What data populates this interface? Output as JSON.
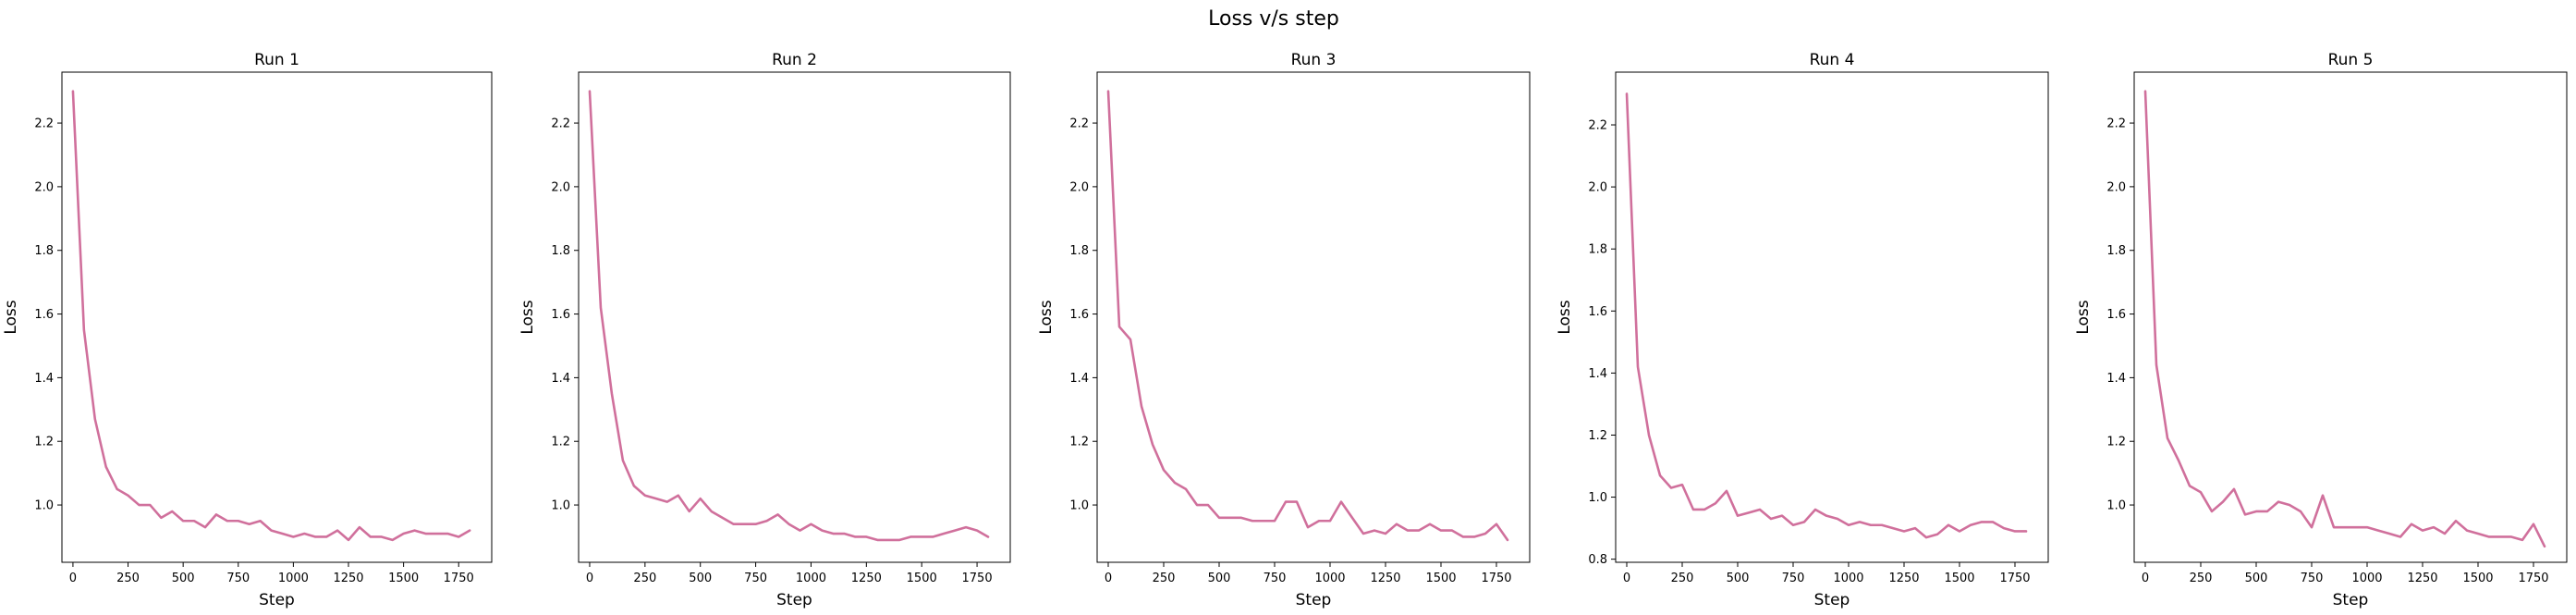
{
  "figure": {
    "suptitle": "Loss v/s step"
  },
  "chart_data": [
    {
      "type": "line",
      "title": "Run 1",
      "xlabel": "Step",
      "ylabel": "Loss",
      "xlim": [
        -50,
        1900
      ],
      "ylim": [
        0.82,
        2.36
      ],
      "xticks": [
        0,
        250,
        500,
        750,
        1000,
        1250,
        1500,
        1750
      ],
      "yticks": [
        1.0,
        1.2,
        1.4,
        1.6,
        1.8,
        2.0,
        2.2
      ],
      "line_color": "#d0709c",
      "series": [
        {
          "x": [
            0,
            50,
            100,
            150,
            200,
            250,
            300,
            350,
            400,
            450,
            500,
            550,
            600,
            650,
            700,
            750,
            800,
            850,
            900,
            950,
            1000,
            1050,
            1100,
            1150,
            1200,
            1250,
            1300,
            1350,
            1400,
            1450,
            1500,
            1550,
            1600,
            1650,
            1700,
            1750,
            1800
          ],
          "y": [
            2.3,
            1.55,
            1.27,
            1.12,
            1.05,
            1.03,
            1.0,
            1.0,
            0.96,
            0.98,
            0.95,
            0.95,
            0.93,
            0.97,
            0.95,
            0.95,
            0.94,
            0.95,
            0.92,
            0.91,
            0.9,
            0.91,
            0.9,
            0.9,
            0.92,
            0.89,
            0.93,
            0.9,
            0.9,
            0.89,
            0.91,
            0.92,
            0.91,
            0.91,
            0.91,
            0.9,
            0.92
          ]
        }
      ]
    },
    {
      "type": "line",
      "title": "Run 2",
      "xlabel": "Step",
      "ylabel": "Loss",
      "xlim": [
        -50,
        1900
      ],
      "ylim": [
        0.82,
        2.36
      ],
      "xticks": [
        0,
        250,
        500,
        750,
        1000,
        1250,
        1500,
        1750
      ],
      "yticks": [
        1.0,
        1.2,
        1.4,
        1.6,
        1.8,
        2.0,
        2.2
      ],
      "line_color": "#d0709c",
      "series": [
        {
          "x": [
            0,
            50,
            100,
            150,
            200,
            250,
            300,
            350,
            400,
            450,
            500,
            550,
            600,
            650,
            700,
            750,
            800,
            850,
            900,
            950,
            1000,
            1050,
            1100,
            1150,
            1200,
            1250,
            1300,
            1350,
            1400,
            1450,
            1500,
            1550,
            1600,
            1650,
            1700,
            1750,
            1800
          ],
          "y": [
            2.3,
            1.62,
            1.35,
            1.14,
            1.06,
            1.03,
            1.02,
            1.01,
            1.03,
            0.98,
            1.02,
            0.98,
            0.96,
            0.94,
            0.94,
            0.94,
            0.95,
            0.97,
            0.94,
            0.92,
            0.94,
            0.92,
            0.91,
            0.91,
            0.9,
            0.9,
            0.89,
            0.89,
            0.89,
            0.9,
            0.9,
            0.9,
            0.91,
            0.92,
            0.93,
            0.92,
            0.9
          ]
        }
      ]
    },
    {
      "type": "line",
      "title": "Run 3",
      "xlabel": "Step",
      "ylabel": "Loss",
      "xlim": [
        -50,
        1900
      ],
      "ylim": [
        0.82,
        2.36
      ],
      "xticks": [
        0,
        250,
        500,
        750,
        1000,
        1250,
        1500,
        1750
      ],
      "yticks": [
        1.0,
        1.2,
        1.4,
        1.6,
        1.8,
        2.0,
        2.2
      ],
      "line_color": "#d0709c",
      "series": [
        {
          "x": [
            0,
            50,
            100,
            150,
            200,
            250,
            300,
            350,
            400,
            450,
            500,
            550,
            600,
            650,
            700,
            750,
            800,
            850,
            900,
            950,
            1000,
            1050,
            1100,
            1150,
            1200,
            1250,
            1300,
            1350,
            1400,
            1450,
            1500,
            1550,
            1600,
            1650,
            1700,
            1750,
            1800
          ],
          "y": [
            2.3,
            1.56,
            1.52,
            1.31,
            1.19,
            1.11,
            1.07,
            1.05,
            1.0,
            1.0,
            0.96,
            0.96,
            0.96,
            0.95,
            0.95,
            0.95,
            1.01,
            1.01,
            0.93,
            0.95,
            0.95,
            1.01,
            0.96,
            0.91,
            0.92,
            0.91,
            0.94,
            0.92,
            0.92,
            0.94,
            0.92,
            0.92,
            0.9,
            0.9,
            0.91,
            0.94,
            0.89
          ]
        }
      ]
    },
    {
      "type": "line",
      "title": "Run 4",
      "xlabel": "Step",
      "ylabel": "Loss",
      "xlim": [
        -50,
        1900
      ],
      "ylim": [
        0.79,
        2.37
      ],
      "xticks": [
        0,
        250,
        500,
        750,
        1000,
        1250,
        1500,
        1750
      ],
      "yticks": [
        0.8,
        1.0,
        1.2,
        1.4,
        1.6,
        1.8,
        2.0,
        2.2
      ],
      "line_color": "#d0709c",
      "series": [
        {
          "x": [
            0,
            50,
            100,
            150,
            200,
            250,
            300,
            350,
            400,
            450,
            500,
            550,
            600,
            650,
            700,
            750,
            800,
            850,
            900,
            950,
            1000,
            1050,
            1100,
            1150,
            1200,
            1250,
            1300,
            1350,
            1400,
            1450,
            1500,
            1550,
            1600,
            1650,
            1700,
            1750,
            1800
          ],
          "y": [
            2.3,
            1.42,
            1.2,
            1.07,
            1.03,
            1.04,
            0.96,
            0.96,
            0.98,
            1.02,
            0.94,
            0.95,
            0.96,
            0.93,
            0.94,
            0.91,
            0.92,
            0.96,
            0.94,
            0.93,
            0.91,
            0.92,
            0.91,
            0.91,
            0.9,
            0.89,
            0.9,
            0.87,
            0.88,
            0.91,
            0.89,
            0.91,
            0.92,
            0.92,
            0.9,
            0.89,
            0.89
          ]
        }
      ]
    },
    {
      "type": "line",
      "title": "Run 5",
      "xlabel": "Step",
      "ylabel": "Loss",
      "xlim": [
        -50,
        1900
      ],
      "ylim": [
        0.82,
        2.36
      ],
      "xticks": [
        0,
        250,
        500,
        750,
        1000,
        1250,
        1500,
        1750
      ],
      "yticks": [
        1.0,
        1.2,
        1.4,
        1.6,
        1.8,
        2.0,
        2.2
      ],
      "line_color": "#d0709c",
      "series": [
        {
          "x": [
            0,
            50,
            100,
            150,
            200,
            250,
            300,
            350,
            400,
            450,
            500,
            550,
            600,
            650,
            700,
            750,
            800,
            850,
            900,
            950,
            1000,
            1050,
            1100,
            1150,
            1200,
            1250,
            1300,
            1350,
            1400,
            1450,
            1500,
            1550,
            1600,
            1650,
            1700,
            1750,
            1800
          ],
          "y": [
            2.3,
            1.44,
            1.21,
            1.14,
            1.06,
            1.04,
            0.98,
            1.01,
            1.05,
            0.97,
            0.98,
            0.98,
            1.01,
            1.0,
            0.98,
            0.93,
            1.03,
            0.93,
            0.93,
            0.93,
            0.93,
            0.92,
            0.91,
            0.9,
            0.94,
            0.92,
            0.93,
            0.91,
            0.95,
            0.92,
            0.91,
            0.9,
            0.9,
            0.9,
            0.89,
            0.94,
            0.87
          ]
        }
      ]
    }
  ]
}
